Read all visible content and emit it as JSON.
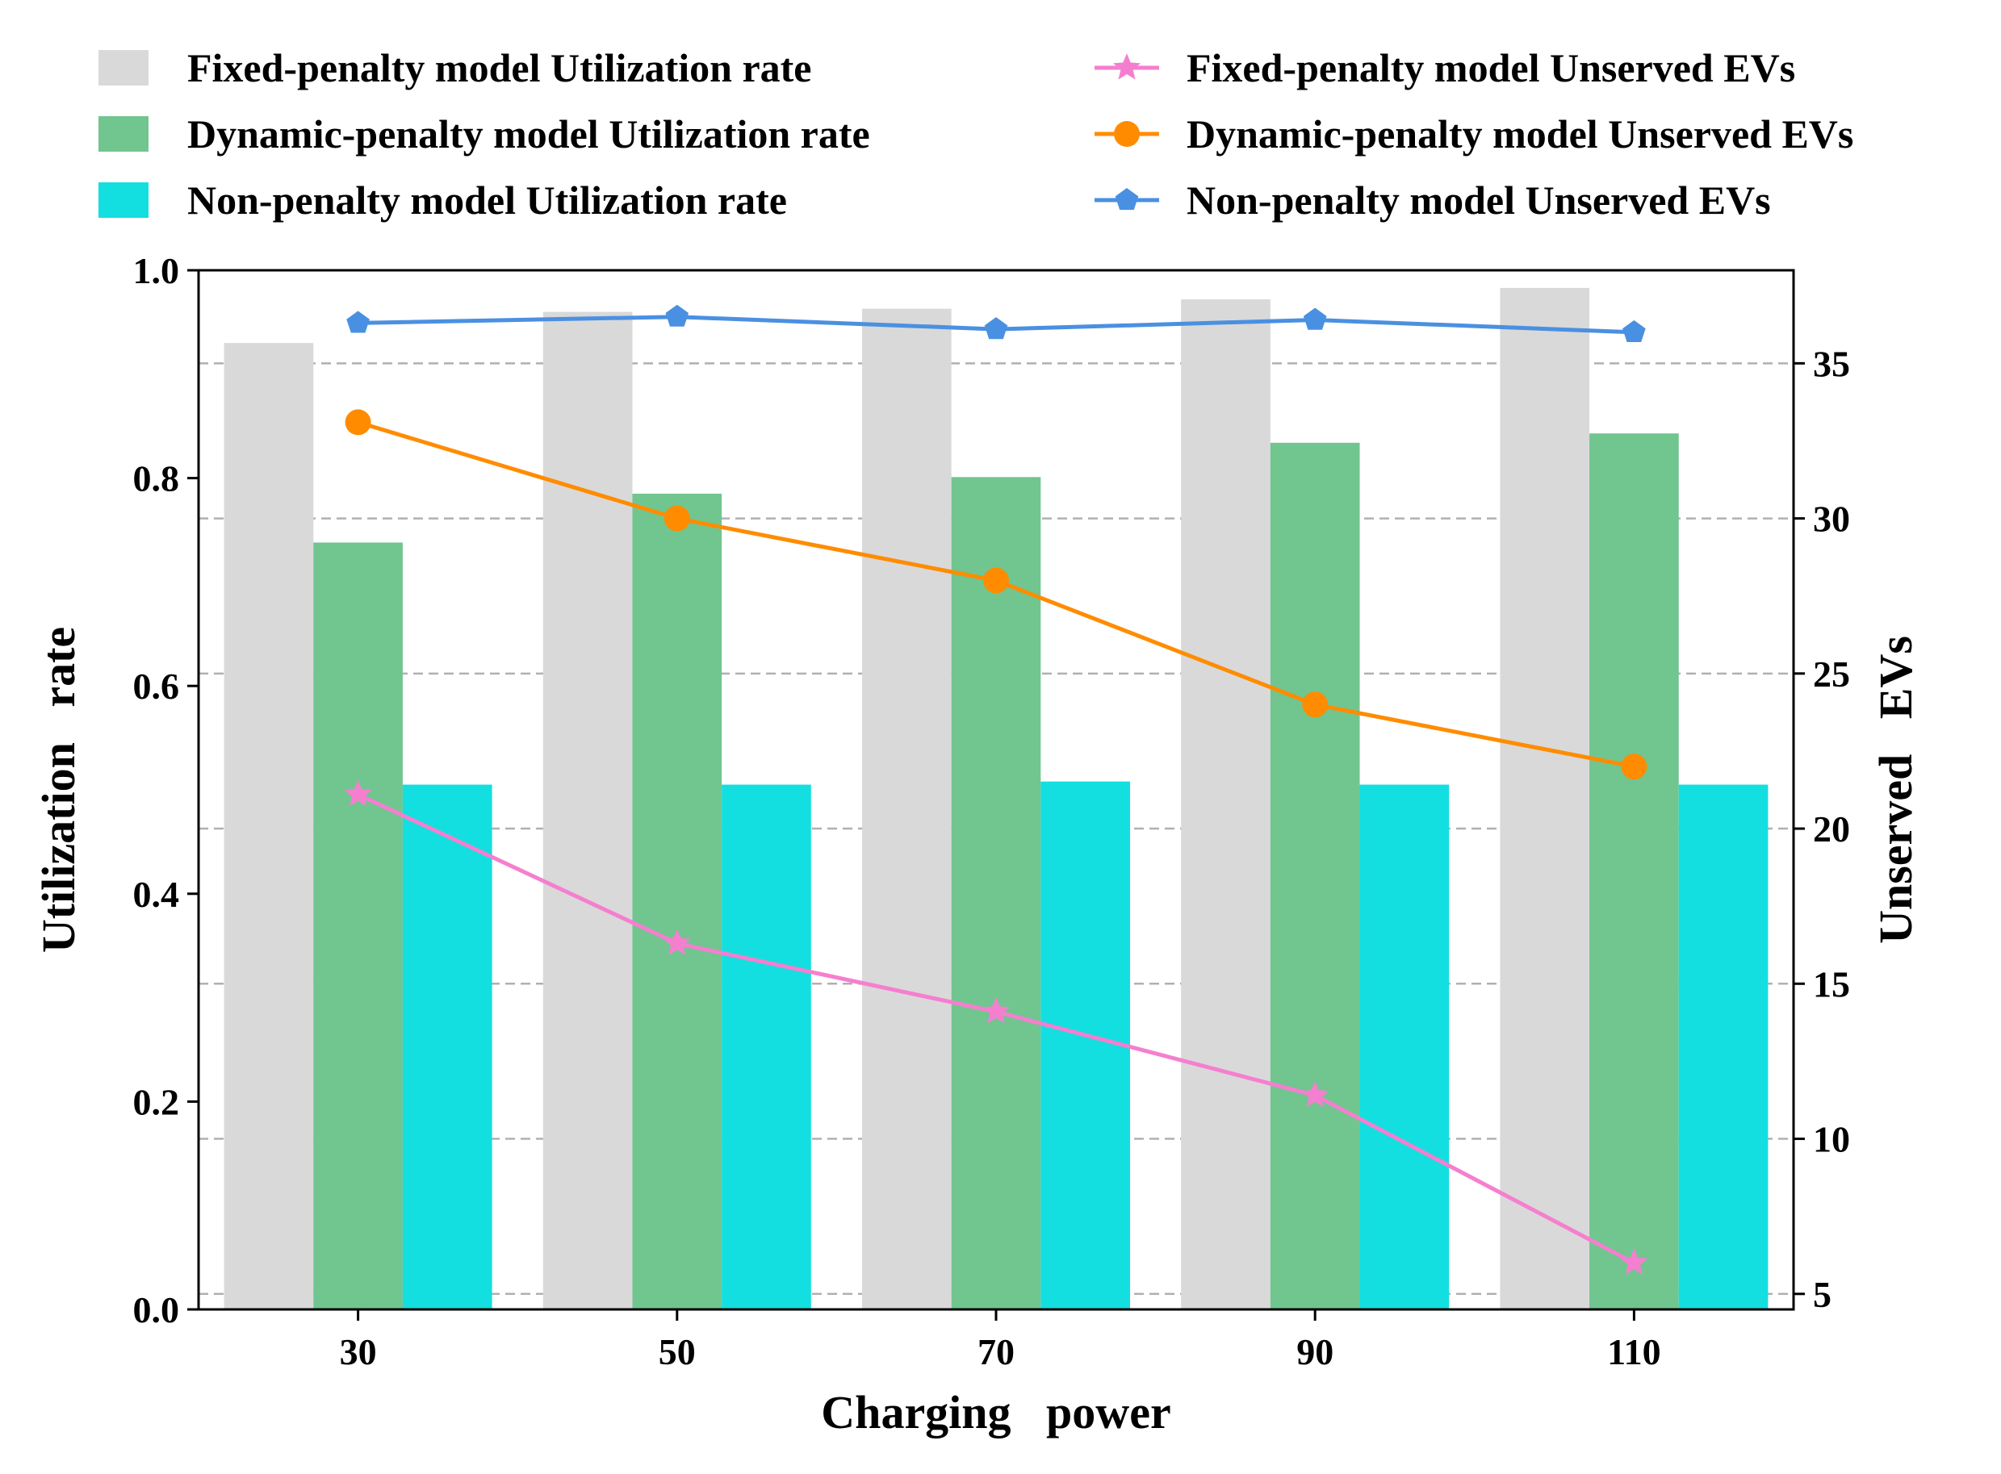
{
  "chart_data": {
    "type": "bar",
    "categories": [
      "30",
      "50",
      "70",
      "90",
      "110"
    ],
    "xlabel": "Charging   power",
    "ylabel_left": "Utilization   rate",
    "ylabel_right": "Unserved   EVs",
    "ylim_left": [
      0.0,
      1.0
    ],
    "yticks_left": [
      0.0,
      0.2,
      0.4,
      0.6,
      0.8,
      1.0
    ],
    "ytick_labels_left": [
      "0.0",
      "0.2",
      "0.4",
      "0.6",
      "0.8",
      "1.0"
    ],
    "ylim_right": [
      4.5,
      38
    ],
    "yticks_right": [
      5,
      10,
      15,
      20,
      25,
      30,
      35
    ],
    "ytick_labels_right": [
      "5",
      "10",
      "15",
      "20",
      "25",
      "30",
      "35"
    ],
    "grid": "dashed horizontal at right-axis ticks",
    "bar_series": [
      {
        "name": "Fixed-penalty model Utilization rate",
        "color": "#d9d9d9",
        "values": [
          0.93,
          0.96,
          0.963,
          0.972,
          0.983
        ]
      },
      {
        "name": "Dynamic-penalty model Utilization rate",
        "color": "#71c58f",
        "values": [
          0.738,
          0.785,
          0.801,
          0.834,
          0.843
        ]
      },
      {
        "name": "Non-penalty model Utilization rate",
        "color": "#13dfe0",
        "values": [
          0.505,
          0.505,
          0.508,
          0.505,
          0.505
        ]
      }
    ],
    "line_series": [
      {
        "name": "Fixed-penalty model Unserved EVs",
        "color": "#f57fcf",
        "marker": "star",
        "values": [
          21.1,
          16.3,
          14.1,
          11.4,
          6.0
        ]
      },
      {
        "name": "Dynamic-penalty model Unserved EVs",
        "color": "#ff8c00",
        "marker": "circle",
        "values": [
          33.1,
          30.0,
          28.0,
          24.0,
          22.0
        ]
      },
      {
        "name": "Non-penalty model Unserved EVs",
        "color": "#4a90e2",
        "marker": "pentagon",
        "values": [
          36.3,
          36.5,
          36.1,
          36.4,
          36.0
        ]
      }
    ],
    "legend_position": "top, two columns"
  }
}
